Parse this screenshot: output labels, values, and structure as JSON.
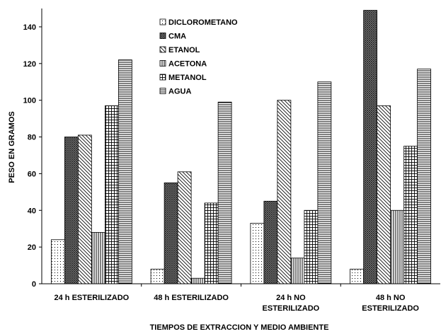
{
  "chart_data": {
    "type": "bar",
    "xlabel": "TIEMPOS DE EXTRACCION Y MEDIO AMBIENTE",
    "ylabel": "PESO EN GRAMOS",
    "ylim": [
      0,
      150
    ],
    "yticks": [
      0,
      20,
      40,
      60,
      80,
      100,
      120,
      140
    ],
    "grid": false,
    "legend_position": "top-center",
    "categories": [
      [
        "24 h ESTERILIZADO"
      ],
      [
        "48 h ESTERILIZADO"
      ],
      [
        "24 h NO",
        "ESTERILIZADO"
      ],
      [
        "48 h NO",
        "ESTERILIZADO"
      ]
    ],
    "series": [
      {
        "name": "DICLOROMETANO",
        "pattern": "dots",
        "values": [
          24,
          8,
          33,
          8
        ]
      },
      {
        "name": "CMA",
        "pattern": "cross-dense",
        "values": [
          80,
          55,
          45,
          149
        ]
      },
      {
        "name": "ETANOL",
        "pattern": "diagonal",
        "values": [
          81,
          61,
          100,
          97
        ]
      },
      {
        "name": "ACETONA",
        "pattern": "vertical",
        "values": [
          28,
          3,
          14,
          40
        ]
      },
      {
        "name": "METANOL",
        "pattern": "grid",
        "values": [
          97,
          44,
          40,
          75
        ]
      },
      {
        "name": "AGUA",
        "pattern": "horizontal",
        "values": [
          122,
          99,
          110,
          117
        ]
      }
    ]
  }
}
